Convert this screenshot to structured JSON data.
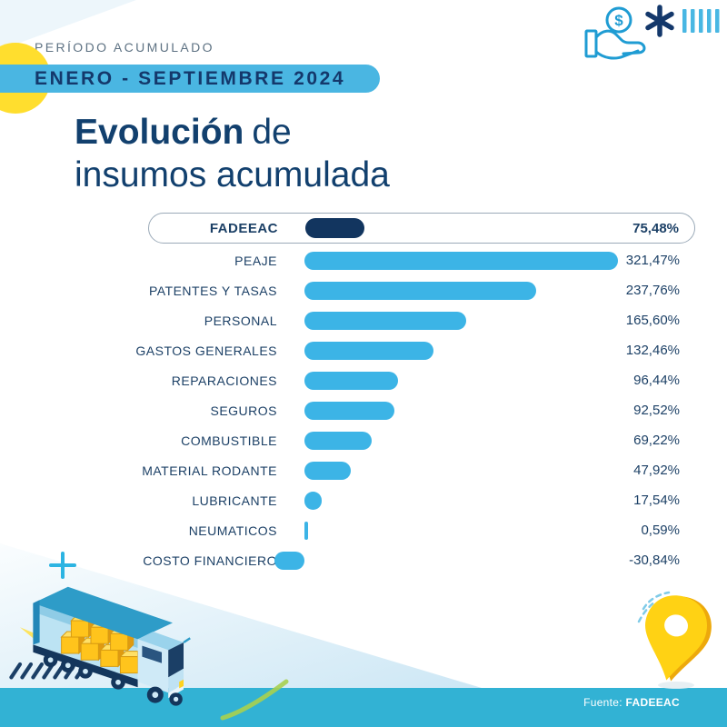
{
  "header": {
    "kicker": "PERÍODO ACUMULADO",
    "period_badge": "ENERO - SEPTIEMBRE 2024",
    "title_bold": "Evolución",
    "title_regular_line1": "de",
    "title_line2": "insumos acumulada"
  },
  "footer": {
    "source_label": "Fuente:",
    "source_value": "FADEEAC"
  },
  "icons": {
    "top_right": [
      "hand-coin-icon",
      "asterisk-icon",
      "tally-bars-icon"
    ],
    "decorative": [
      "plus-icon",
      "truck-illustration",
      "hatch-marks",
      "location-pin-icon",
      "green-swoosh",
      "yellow-circle"
    ]
  },
  "colors": {
    "bar_blue": "#3CB4E6",
    "dark_bar_navy": "#12355F",
    "navy_text": "#14386B",
    "title_navy": "#12406E",
    "badge_blue": "#4AB6E2",
    "band_teal": "#32B2D4",
    "kicker_gray": "#5E7283",
    "yellow": "#FFDE2E",
    "pin_yellow": "#FFD214",
    "swoosh_green": "#A9D04E"
  },
  "chart_data": {
    "type": "bar",
    "orientation": "horizontal",
    "title": "Evolución de insumos acumulada",
    "period": "ENERO - SEPTIEMBRE 2024",
    "unit": "%",
    "grid": false,
    "legend": false,
    "xlim": [
      -35,
      330
    ],
    "highlight_index": 0,
    "source": "FADEEAC",
    "categories": [
      "FADEEAC",
      "PEAJE",
      "PATENTES Y TASAS",
      "PERSONAL",
      "GASTOS GENERALES",
      "REPARACIONES",
      "SEGUROS",
      "COMBUSTIBLE",
      "MATERIAL RODANTE",
      "LUBRICANTE",
      "NEUMATICOS",
      "COSTO FINANCIERO"
    ],
    "values": [
      75.48,
      321.47,
      237.76,
      165.6,
      132.46,
      96.44,
      92.52,
      69.22,
      47.92,
      17.54,
      0.59,
      -30.84
    ],
    "value_labels": [
      "75,48%",
      "321,47%",
      "237,76%",
      "165,60%",
      "132,46%",
      "96,44%",
      "92,52%",
      "69,22%",
      "47,92%",
      "17,54%",
      "0,59%",
      "-30,84%"
    ]
  }
}
